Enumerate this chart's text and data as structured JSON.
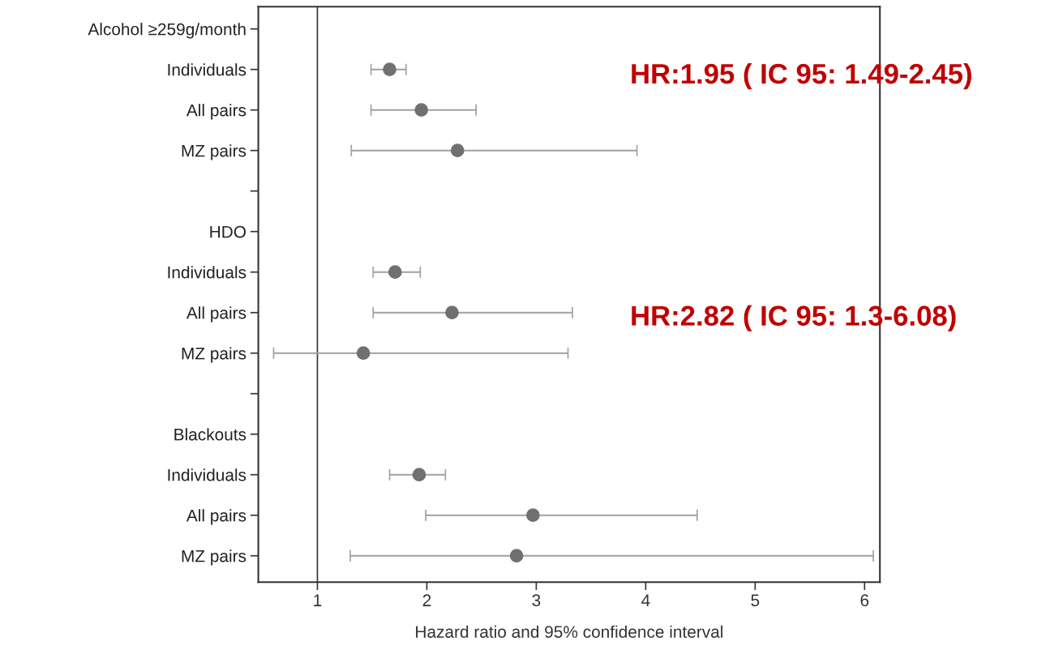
{
  "chart_data": {
    "type": "scatter",
    "orientation": "horizontal",
    "xlabel": "Hazard ratio and 95% confidence interval",
    "categories": [
      "Alcohol ≥259g/month",
      "Individuals",
      "All pairs",
      "MZ pairs",
      null,
      "HDO",
      "Individuals",
      "All pairs",
      "MZ pairs",
      null,
      "Blackouts",
      "Individuals",
      "All pairs",
      "MZ pairs"
    ],
    "values": [
      null,
      1.66,
      1.95,
      2.28,
      null,
      null,
      1.71,
      2.23,
      1.42,
      null,
      null,
      1.93,
      2.97,
      2.82
    ],
    "errors": [
      null,
      [
        1.49,
        1.81
      ],
      [
        1.49,
        2.45
      ],
      [
        1.31,
        3.92
      ],
      null,
      null,
      [
        1.51,
        1.94
      ],
      [
        1.51,
        3.33
      ],
      [
        0.6,
        3.29
      ],
      null,
      null,
      [
        1.66,
        2.17
      ],
      [
        1.99,
        4.47
      ],
      [
        1.3,
        6.08
      ]
    ],
    "color": "#707070",
    "marker": "circle",
    "xlim": [
      0.46,
      6.14
    ],
    "xticks": [
      1,
      2,
      3,
      4,
      5,
      6
    ],
    "ref_lines": [
      {
        "axis": "x",
        "value": 1,
        "color": "#333333"
      }
    ],
    "annotations": [
      "HR:1.95 ( IC 95: 1.49-2.45)",
      "HR:2.82 ( IC 95: 1.3-6.08)"
    ],
    "grid": false,
    "legend": false
  }
}
